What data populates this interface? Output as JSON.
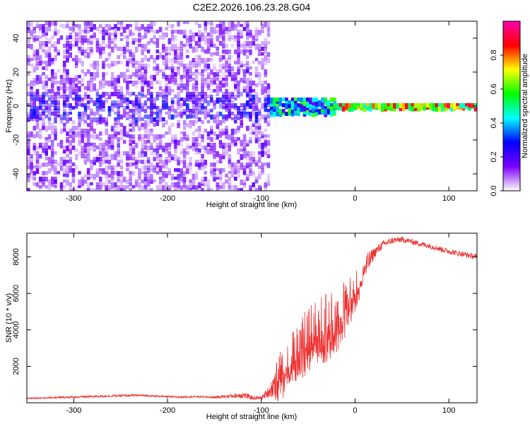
{
  "figure": {
    "title": "C2E2.2026.106.23.28.G04"
  },
  "chart_data": [
    {
      "type": "heatmap",
      "xlabel": "Height of straight line (km)",
      "ylabel": "Frequency (Hz)",
      "xlim": [
        -350,
        130
      ],
      "ylim": [
        -50,
        50
      ],
      "xticks": [
        -300,
        -200,
        -100,
        0,
        100
      ],
      "yticks": [
        -40,
        -20,
        0,
        20,
        40
      ],
      "colorbar": {
        "label": "Normalized spectral amplitude",
        "range": [
          0,
          1
        ],
        "ticks": [
          0.0,
          0.2,
          0.4,
          0.6,
          0.8
        ],
        "colormap": [
          "#ffffff",
          "#7b00ff",
          "#0000ff",
          "#00ffff",
          "#00ff00",
          "#ffff00",
          "#ff0000",
          "#ff00b0"
        ]
      },
      "regions": [
        {
          "name": "diffuse scatter",
          "x_range": [
            -350,
            -90
          ],
          "freq_range": [
            -50,
            50
          ],
          "amplitude": 0.12
        },
        {
          "name": "central band",
          "x_range": [
            -350,
            -90
          ],
          "freq_range": [
            -8,
            8
          ],
          "amplitude": 0.2
        },
        {
          "name": "transition",
          "x_range": [
            -90,
            -20
          ],
          "freq_range": [
            -5,
            5
          ],
          "amplitude": 0.45
        },
        {
          "name": "narrow carrier",
          "x_range": [
            -20,
            130
          ],
          "freq_range": [
            -2,
            2
          ],
          "amplitude": 0.8
        }
      ]
    },
    {
      "type": "line",
      "xlabel": "Height of straight line (km)",
      "ylabel": "SNR (10 * v/v)",
      "xlim": [
        -350,
        130
      ],
      "ylim": [
        0,
        9300
      ],
      "xticks": [
        -300,
        -200,
        -100,
        0,
        100
      ],
      "yticks": [
        2000,
        4000,
        6000,
        8000
      ],
      "series": [
        {
          "color": "#ee3030",
          "x": [
            -350,
            -330,
            -310,
            -290,
            -270,
            -250,
            -230,
            -210,
            -190,
            -170,
            -150,
            -130,
            -120,
            -110,
            -100,
            -90,
            -80,
            -70,
            -60,
            -50,
            -40,
            -30,
            -20,
            -10,
            0,
            10,
            20,
            30,
            40,
            50,
            60,
            70,
            80,
            90,
            100,
            110,
            120,
            130
          ],
          "y": [
            250,
            270,
            300,
            330,
            360,
            390,
            410,
            360,
            310,
            340,
            300,
            380,
            430,
            280,
            260,
            700,
            1600,
            2300,
            3000,
            3600,
            4000,
            4300,
            4600,
            5300,
            6200,
            7300,
            8200,
            8700,
            8900,
            8950,
            8850,
            8700,
            8600,
            8450,
            8300,
            8200,
            8100,
            8000
          ],
          "noise": [
            40,
            40,
            60,
            60,
            60,
            60,
            60,
            50,
            50,
            50,
            60,
            120,
            200,
            120,
            80,
            400,
            1300,
            1400,
            1600,
            1700,
            1800,
            1800,
            1700,
            1400,
            1000,
            800,
            300,
            200,
            180,
            160,
            150,
            150,
            150,
            150,
            150,
            150,
            150,
            150
          ]
        }
      ]
    }
  ]
}
